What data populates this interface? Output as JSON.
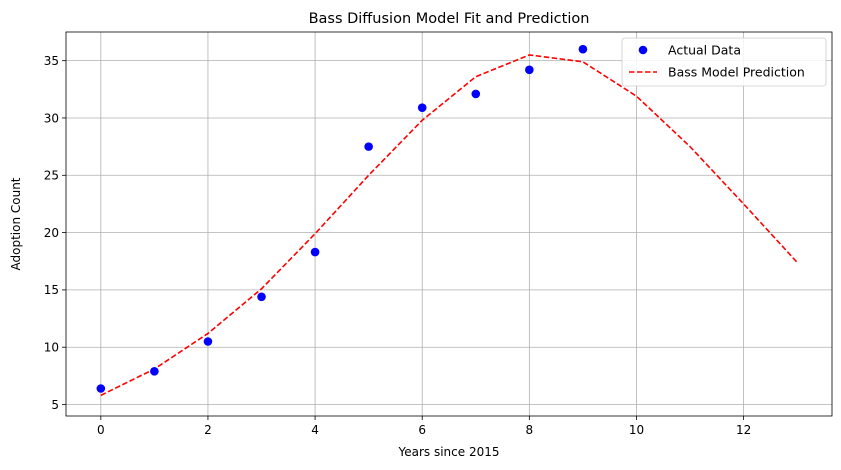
{
  "chart_data": {
    "type": "scatter",
    "title": "Bass Diffusion Model Fit and Prediction",
    "xlabel": "Years since 2015",
    "ylabel": "Adoption Count",
    "xlim": [
      -0.65,
      13.65
    ],
    "ylim": [
      4.0,
      37.5
    ],
    "xticks": [
      0,
      2,
      4,
      6,
      8,
      10,
      12
    ],
    "yticks": [
      5,
      10,
      15,
      20,
      25,
      30,
      35
    ],
    "grid": true,
    "legend_position": "top-right",
    "series": [
      {
        "name": "Actual Data",
        "kind": "scatter",
        "color": "#0000ff",
        "x": [
          0,
          1,
          2,
          3,
          4,
          5,
          6,
          7,
          8,
          9
        ],
        "y": [
          6.4,
          7.9,
          10.5,
          14.4,
          18.3,
          27.5,
          30.9,
          32.1,
          34.2,
          36.0
        ]
      },
      {
        "name": "Bass Model Prediction",
        "kind": "line",
        "style": "dashed",
        "color": "#ff0000",
        "x": [
          0,
          1,
          2,
          3,
          4,
          5,
          6,
          7,
          8,
          9,
          10,
          11,
          12,
          13
        ],
        "y": [
          5.8,
          8.1,
          11.2,
          15.1,
          19.9,
          25.0,
          29.8,
          33.6,
          35.5,
          34.9,
          31.9,
          27.5,
          22.5,
          17.4
        ]
      }
    ]
  }
}
